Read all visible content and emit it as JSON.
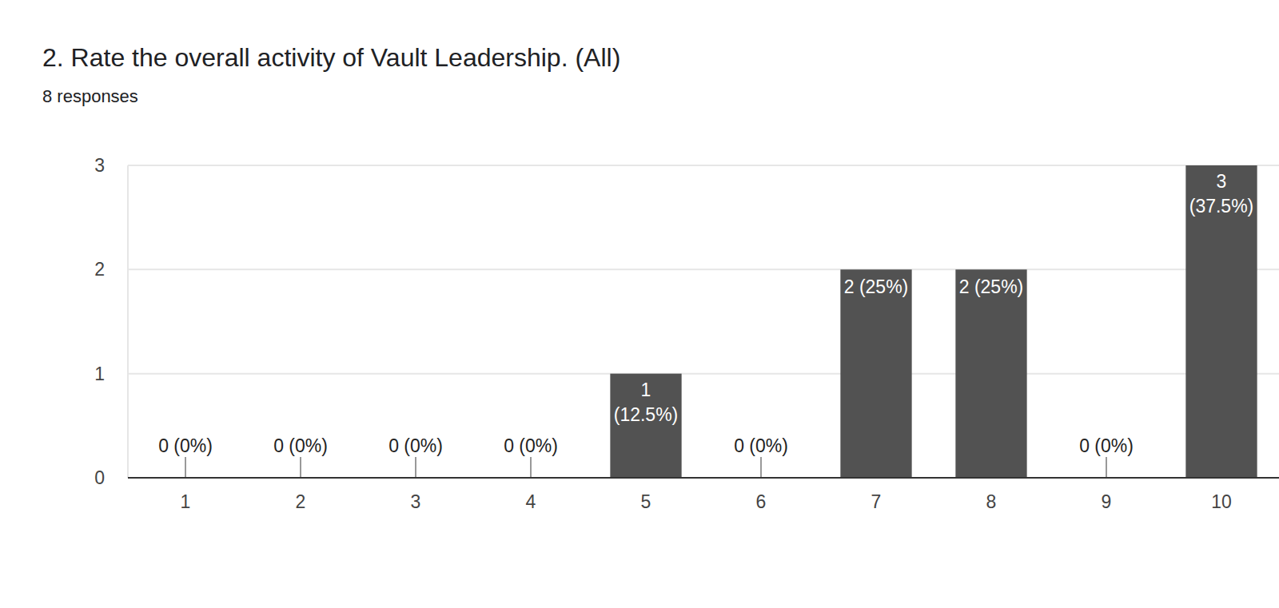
{
  "chart_data": {
    "type": "bar",
    "title": "2. Rate the overall activity of Vault Leadership. (All)",
    "subtitle": "8 responses",
    "categories": [
      "1",
      "2",
      "3",
      "4",
      "5",
      "6",
      "7",
      "8",
      "9",
      "10"
    ],
    "values": [
      0,
      0,
      0,
      0,
      1,
      0,
      2,
      2,
      0,
      3
    ],
    "value_labels": [
      "0 (0%)",
      "0 (0%)",
      "0 (0%)",
      "0 (0%)",
      "1 (12.5%)",
      "0 (0%)",
      "2 (25%)",
      "2 (25%)",
      "0 (0%)",
      "3 (37.5%)"
    ],
    "color": "#525252",
    "ylim": [
      0,
      3
    ],
    "yticks": [
      0,
      1,
      2,
      3
    ],
    "grid": true,
    "data_labels": true
  }
}
